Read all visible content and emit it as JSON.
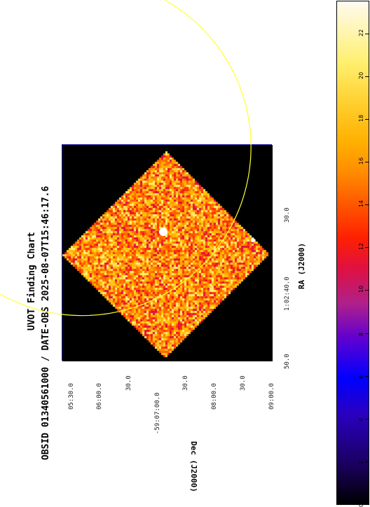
{
  "title": {
    "line1": "UVOT Finding Chart",
    "line2": "OBSID 01340561000 / DATE-OBS 2025-08-07T15:46:17.6"
  },
  "xaxis": {
    "label": "RA (J2000)",
    "ticks": [
      "50.0",
      "1:02:40.0",
      "30.0"
    ]
  },
  "yaxis": {
    "label": "Dec (J2000)",
    "ticks": [
      "05:30.0",
      "06:00.0",
      "30.0",
      "-59:07:00.0",
      "30.0",
      "08:00.0",
      "30.0",
      "09:00.0"
    ]
  },
  "colorbar": {
    "ticks": [
      "0",
      "2",
      "4",
      "6",
      "8",
      "10",
      "12",
      "14",
      "16",
      "18",
      "20",
      "22"
    ],
    "range": [
      0,
      23.5
    ]
  },
  "colors": {
    "circle": "#ffff33",
    "frame": "#1a1aa0",
    "background": "#000000"
  }
}
